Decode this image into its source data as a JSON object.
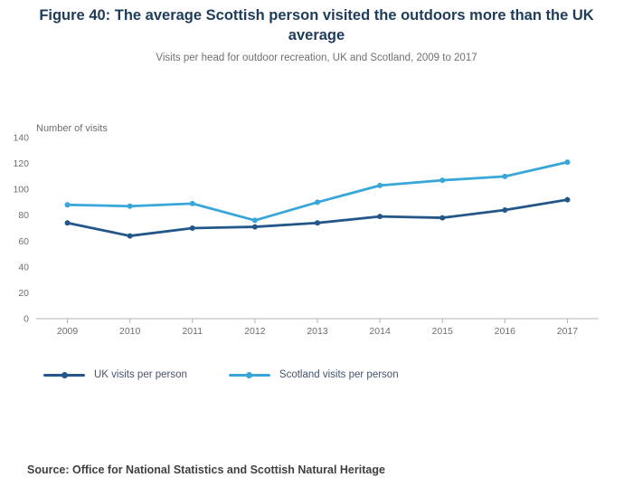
{
  "header": {
    "title": "Figure 40: The average Scottish person visited the outdoors more than the UK average",
    "subtitle": "Visits per head for outdoor recreation, UK and Scotland, 2009 to 2017"
  },
  "colors": {
    "title": "#1e3c5a",
    "subtitle": "#707070",
    "tick": "#6e6e6e",
    "legend": "#44546a",
    "source": "#404040",
    "axis_line": "#b3b3b3"
  },
  "chart_data": {
    "type": "line",
    "title": "Figure 40: The average Scottish person visited the outdoors more than the UK average",
    "subtitle": "Visits per head for outdoor recreation, UK and Scotland, 2009 to 2017",
    "ylabel": "Number of visits",
    "xlabel": "",
    "ylim": [
      0,
      140
    ],
    "ytick_step": 20,
    "grid": false,
    "legend_position": "bottom-left",
    "categories": [
      "2009",
      "2010",
      "2011",
      "2012",
      "2013",
      "2014",
      "2015",
      "2016",
      "2017"
    ],
    "series": [
      {
        "name": "UK visits per person",
        "color": "#235789",
        "values": [
          74,
          64,
          70,
          71,
          74,
          79,
          78,
          84,
          92
        ]
      },
      {
        "name": "Scotland visits per person",
        "color": "#38a6d8",
        "values": [
          88,
          87,
          89,
          76,
          90,
          103,
          107,
          110,
          121
        ]
      }
    ]
  },
  "footer": {
    "source": "Source: Office for National Statistics and Scottish Natural Heritage"
  }
}
